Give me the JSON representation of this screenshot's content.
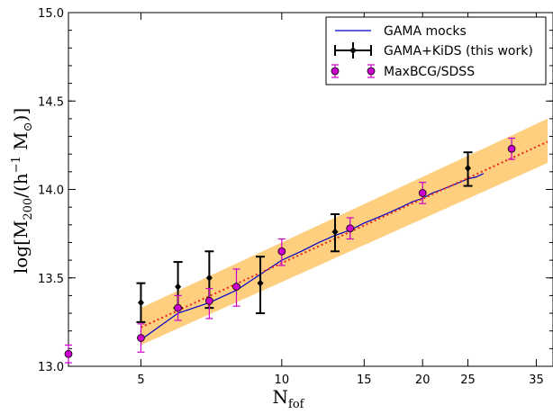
{
  "chart_data": {
    "type": "scatter",
    "title": "",
    "xlabel": "N",
    "xlabel_sub": "fof",
    "ylabel_parts": {
      "a": "log[M",
      "a_sub": "200",
      "b": "/(h",
      "b_sup": "−1",
      "c": " M",
      "c_sub": "⊙",
      "d": ")]"
    },
    "x_scale": "log",
    "xlim": [
      3.5,
      38
    ],
    "ylim": [
      13.0,
      15.0
    ],
    "x_ticks": [
      5,
      10,
      15,
      20,
      25,
      35
    ],
    "x_tick_labels": [
      "5",
      "10",
      "15",
      "20",
      "25",
      "35"
    ],
    "y_ticks": [
      13.0,
      13.5,
      14.0,
      14.5,
      15.0
    ],
    "y_tick_labels": [
      "13.0",
      "13.5",
      "14.0",
      "14.5",
      "15.0"
    ],
    "grid": false,
    "legend_position": "top-right",
    "series": [
      {
        "name": "GAMA mocks",
        "kind": "line",
        "color": "#0000cc",
        "x": [
          5,
          6,
          7,
          8,
          9,
          10,
          11,
          12,
          13,
          14,
          15,
          16,
          17,
          18,
          19,
          20,
          21,
          22,
          23,
          24,
          25,
          26,
          27
        ],
        "y": [
          13.15,
          13.3,
          13.36,
          13.43,
          13.52,
          13.6,
          13.65,
          13.7,
          13.74,
          13.77,
          13.81,
          13.84,
          13.87,
          13.9,
          13.93,
          13.95,
          13.98,
          14.0,
          14.02,
          14.04,
          14.06,
          14.07,
          14.09
        ]
      },
      {
        "name": "GAMA+KiDS (this work)",
        "kind": "errorbar",
        "color": "#000000",
        "x": [
          5,
          6,
          7,
          9,
          13,
          25
        ],
        "y": [
          13.36,
          13.45,
          13.5,
          13.47,
          13.76,
          14.12
        ],
        "yerr_low": [
          0.11,
          0.12,
          0.17,
          0.17,
          0.11,
          0.1
        ],
        "yerr_high": [
          0.11,
          0.14,
          0.15,
          0.15,
          0.1,
          0.09
        ],
        "xerr": [
          0.1,
          0.1,
          0.1,
          0.1,
          0.12,
          0.2
        ]
      },
      {
        "name": "MaxBCG/SDSS",
        "kind": "errorbar",
        "color": "#cc00cc",
        "marker_color": "#cc00cc",
        "x": [
          3.5,
          5,
          6,
          7,
          8,
          10,
          14,
          20,
          31
        ],
        "y": [
          13.07,
          13.16,
          13.33,
          13.37,
          13.45,
          13.65,
          13.78,
          13.98,
          14.23
        ],
        "yerr_low": [
          0.05,
          0.08,
          0.07,
          0.1,
          0.11,
          0.08,
          0.06,
          0.06,
          0.06
        ],
        "yerr_high": [
          0.05,
          0.08,
          0.07,
          0.07,
          0.1,
          0.07,
          0.06,
          0.06,
          0.06
        ]
      },
      {
        "kind": "fit",
        "color": "#e8251c",
        "x": [
          5,
          37
        ],
        "y": [
          13.22,
          14.27
        ]
      },
      {
        "kind": "band",
        "color": "#fdbf54",
        "x": [
          5,
          37
        ],
        "y_low": [
          13.12,
          14.15
        ],
        "y_high": [
          13.33,
          14.4
        ]
      }
    ]
  }
}
